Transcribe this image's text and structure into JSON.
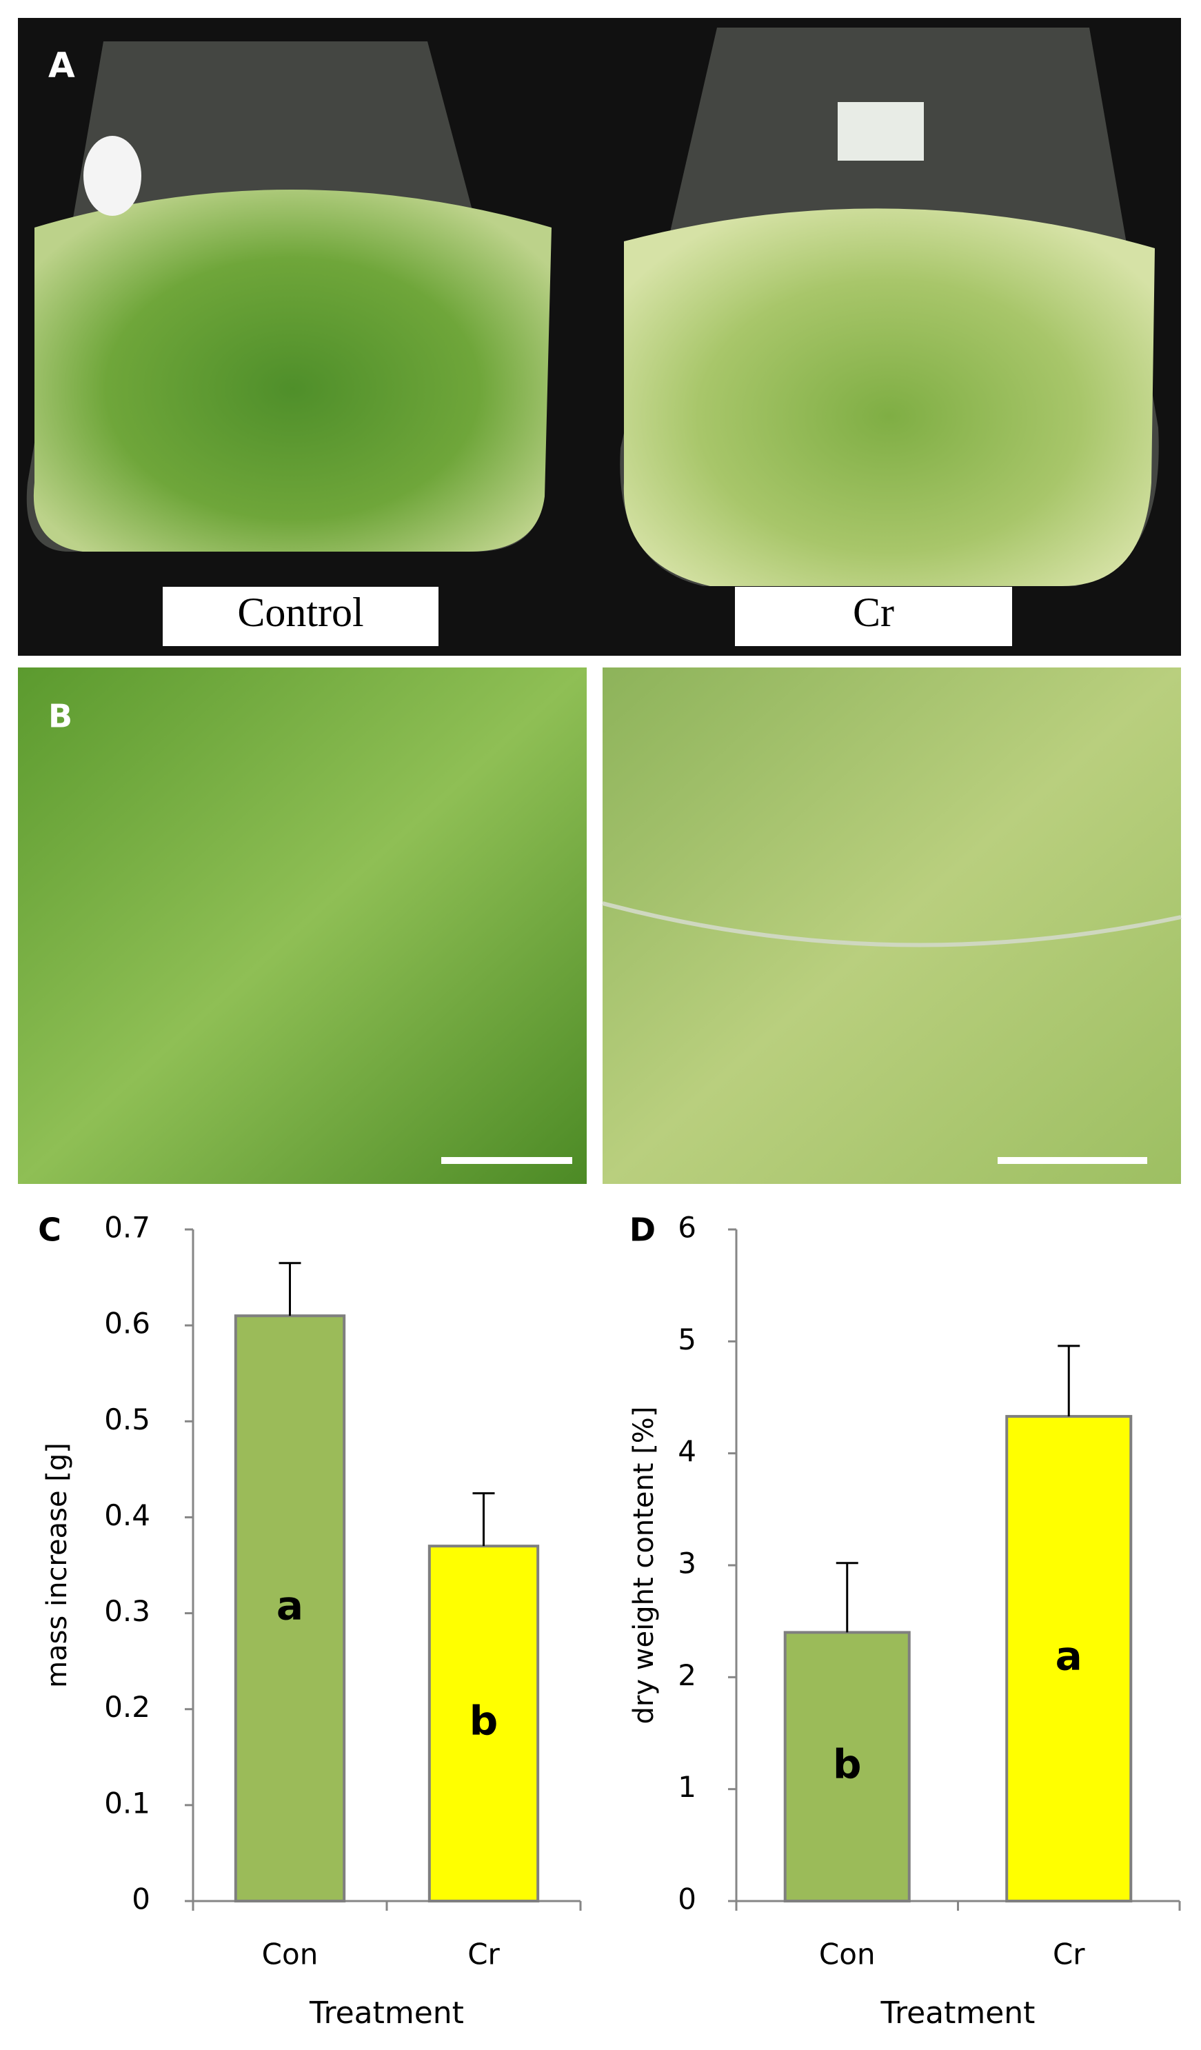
{
  "photos": [
    {
      "label": "A",
      "captions": [
        "Control",
        "Cr"
      ]
    },
    {
      "label": "B"
    }
  ],
  "chart_data": [
    {
      "type": "bar",
      "panel_label": "C",
      "ylabel": "mass increase [g]",
      "xlabel": "Treatment",
      "categories": [
        "Con",
        "Cr"
      ],
      "values": [
        0.61,
        0.37
      ],
      "errors": [
        0.055,
        0.055
      ],
      "annotations": [
        "a",
        "b"
      ],
      "colors": [
        "#9bbb59",
        "#ffff00"
      ],
      "ylim": [
        0,
        0.7
      ],
      "yticks": [
        0,
        0.1,
        0.2,
        0.3,
        0.4,
        0.5,
        0.6,
        0.7
      ]
    },
    {
      "type": "bar",
      "panel_label": "D",
      "ylabel": "dry weight content [%]",
      "xlabel": "Treatment",
      "categories": [
        "Con",
        "Cr"
      ],
      "values": [
        2.4,
        4.33
      ],
      "errors": [
        0.62,
        0.63
      ],
      "annotations": [
        "b",
        "a"
      ],
      "colors": [
        "#9bbb59",
        "#ffff00"
      ],
      "ylim": [
        0,
        6
      ],
      "yticks": [
        0,
        1,
        2,
        3,
        4,
        5,
        6
      ]
    }
  ]
}
